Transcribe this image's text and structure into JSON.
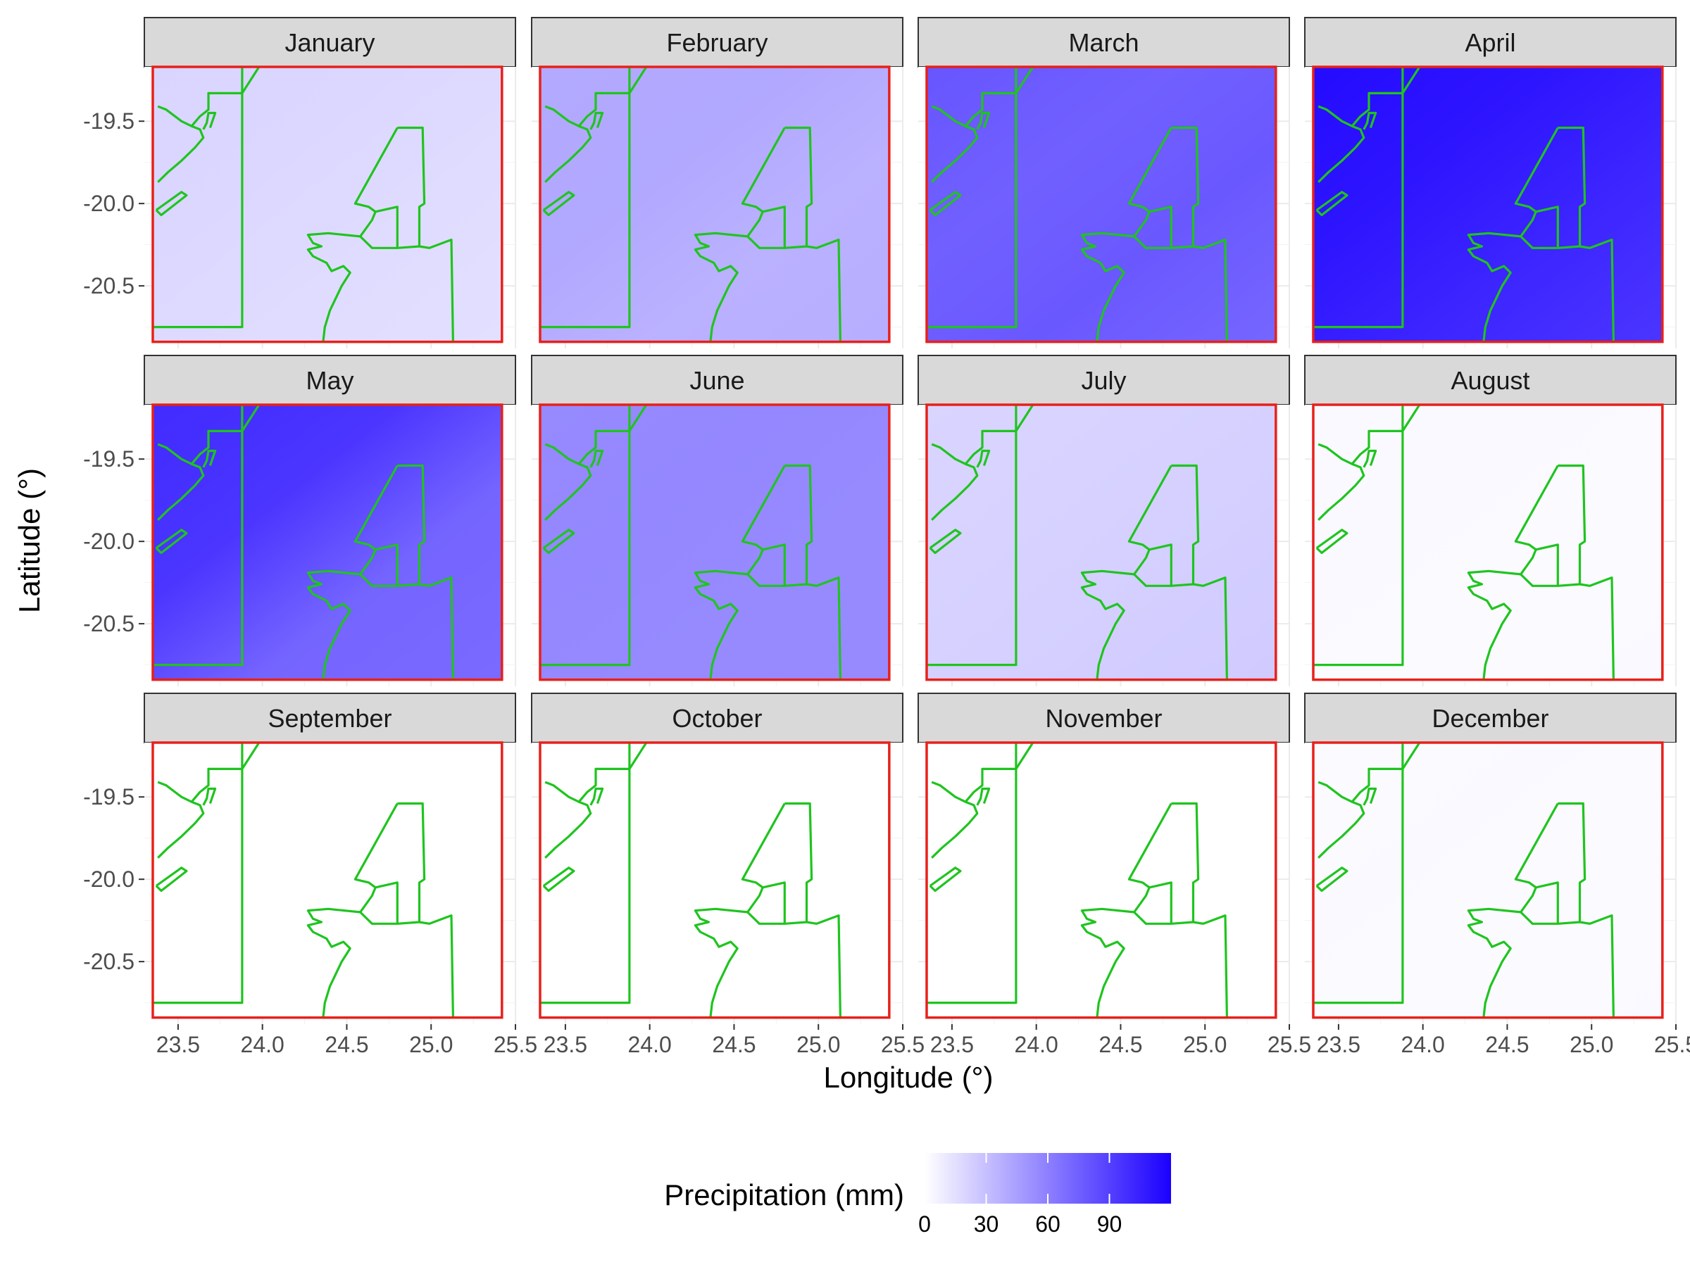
{
  "chart_data": {
    "type": "heatmap",
    "facet_by": "month",
    "panels": [
      {
        "month": "January",
        "precip_mm": {
          "nw": 20,
          "ne": 18,
          "sw": 18,
          "se": 15
        }
      },
      {
        "month": "February",
        "precip_mm": {
          "nw": 40,
          "ne": 35,
          "sw": 42,
          "se": 38
        }
      },
      {
        "month": "March",
        "precip_mm": {
          "nw": 80,
          "ne": 85,
          "sw": 70,
          "se": 72
        }
      },
      {
        "month": "April",
        "precip_mm": {
          "nw": 115,
          "ne": 110,
          "sw": 105,
          "se": 95
        }
      },
      {
        "month": "May",
        "precip_mm": {
          "nw": 100,
          "ne": 75,
          "sw": 90,
          "se": 70
        }
      },
      {
        "month": "June",
        "precip_mm": {
          "nw": 55,
          "ne": 55,
          "sw": 58,
          "se": 55
        }
      },
      {
        "month": "July",
        "precip_mm": {
          "nw": 20,
          "ne": 20,
          "sw": 22,
          "se": 25
        }
      },
      {
        "month": "August",
        "precip_mm": {
          "nw": 3,
          "ne": 2,
          "sw": 3,
          "se": 3
        }
      },
      {
        "month": "September",
        "precip_mm": {
          "nw": 0,
          "ne": 0,
          "sw": 0,
          "se": 0
        }
      },
      {
        "month": "October",
        "precip_mm": {
          "nw": 0,
          "ne": 0,
          "sw": 0,
          "se": 0
        }
      },
      {
        "month": "November",
        "precip_mm": {
          "nw": 0,
          "ne": 0,
          "sw": 0,
          "se": 0
        }
      },
      {
        "month": "December",
        "precip_mm": {
          "nw": 2,
          "ne": 1,
          "sw": 4,
          "se": 3
        }
      }
    ],
    "xlabel": "Longitude (°)",
    "ylabel": "Latitude (°)",
    "xlim": [
      23.3,
      25.5
    ],
    "ylim": [
      -20.88,
      -19.17
    ],
    "extent_box": {
      "lon": [
        23.35,
        25.42
      ],
      "lat": [
        -20.84,
        -19.17
      ],
      "color": "#e8201a"
    },
    "x_ticks": [
      "23.5",
      "24.0",
      "24.5",
      "25.0",
      "25.5"
    ],
    "x_tick_values": [
      23.5,
      24.0,
      24.5,
      25.0,
      25.5
    ],
    "y_ticks": [
      "-19.5",
      "-20.0",
      "-20.5"
    ],
    "y_tick_values": [
      -19.5,
      -20.0,
      -20.5
    ],
    "boundary_color": "#1fc41f",
    "boundaries": [
      [
        [
          23.38,
          -19.41
        ],
        [
          23.43,
          -19.43
        ],
        [
          23.52,
          -19.5
        ],
        [
          23.58,
          -19.53
        ],
        [
          23.63,
          -19.55
        ],
        [
          23.65,
          -19.6
        ],
        [
          23.6,
          -19.66
        ],
        [
          23.52,
          -19.74
        ],
        [
          23.44,
          -19.81
        ],
        [
          23.38,
          -19.87
        ]
      ],
      [
        [
          23.58,
          -19.53
        ],
        [
          23.63,
          -19.47
        ],
        [
          23.68,
          -19.43
        ],
        [
          23.68,
          -19.33
        ],
        [
          23.88,
          -19.33
        ],
        [
          23.98,
          -19.17
        ]
      ],
      [
        [
          23.88,
          -19.17
        ],
        [
          23.88,
          -20.75
        ],
        [
          23.35,
          -20.75
        ]
      ],
      [
        [
          23.65,
          -19.55
        ],
        [
          23.67,
          -19.51
        ],
        [
          23.68,
          -19.45
        ],
        [
          23.72,
          -19.45
        ],
        [
          23.69,
          -19.54
        ]
      ],
      [
        [
          23.37,
          -20.04
        ],
        [
          23.52,
          -19.93
        ],
        [
          23.55,
          -19.95
        ],
        [
          23.4,
          -20.07
        ],
        [
          23.37,
          -20.04
        ]
      ],
      [
        [
          24.8,
          -19.54
        ],
        [
          24.95,
          -19.54
        ],
        [
          24.96,
          -20.0
        ],
        [
          24.93,
          -20.02
        ],
        [
          24.93,
          -20.26
        ],
        [
          24.99,
          -20.27
        ],
        [
          25.12,
          -20.22
        ],
        [
          25.13,
          -20.84
        ],
        [
          24.36,
          -20.84
        ],
        [
          24.37,
          -20.75
        ],
        [
          24.4,
          -20.65
        ],
        [
          24.47,
          -20.5
        ],
        [
          24.52,
          -20.42
        ],
        [
          24.48,
          -20.38
        ],
        [
          24.41,
          -20.41
        ],
        [
          24.38,
          -20.36
        ],
        [
          24.3,
          -20.32
        ],
        [
          24.27,
          -20.28
        ],
        [
          24.35,
          -20.26
        ],
        [
          24.3,
          -20.24
        ],
        [
          24.27,
          -20.19
        ],
        [
          24.39,
          -20.18
        ],
        [
          24.58,
          -20.2
        ],
        [
          24.65,
          -20.27
        ],
        [
          24.8,
          -20.27
        ],
        [
          24.93,
          -20.26
        ]
      ],
      [
        [
          24.58,
          -20.2
        ],
        [
          24.65,
          -20.1
        ],
        [
          24.67,
          -20.05
        ],
        [
          24.63,
          -20.02
        ],
        [
          24.55,
          -20.0
        ],
        [
          24.8,
          -19.54
        ]
      ],
      [
        [
          24.8,
          -20.27
        ],
        [
          24.8,
          -20.02
        ],
        [
          24.67,
          -20.05
        ]
      ]
    ],
    "legend": {
      "title": "Precipitation (mm)",
      "ticks": [
        "0",
        "30",
        "60",
        "90"
      ],
      "tick_values": [
        0,
        30,
        60,
        90
      ],
      "range": [
        0,
        120
      ],
      "color_low": "#ffffff",
      "color_high": "#1b00ff"
    }
  }
}
